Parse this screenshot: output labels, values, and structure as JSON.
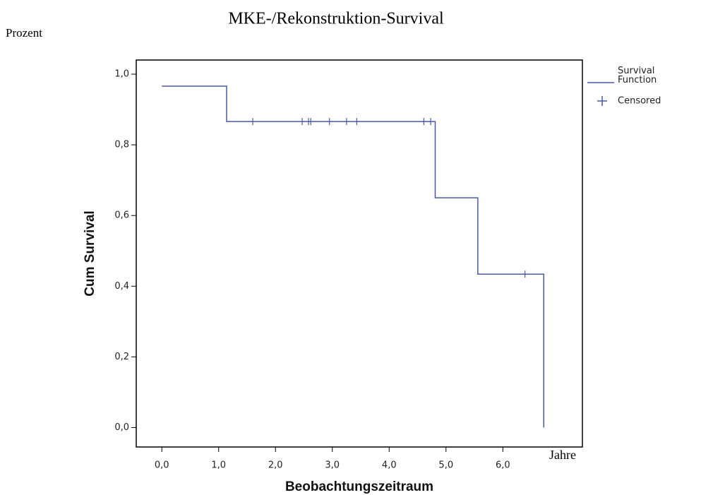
{
  "chart_data": {
    "type": "step",
    "title": "MKE-/Rekonstruktion-Survival",
    "annotations": [
      "Prozent",
      "Jahre"
    ],
    "x_label": "Beobachtungszeitraum",
    "y_label": "Cum Survival",
    "xlim": [
      -0.45,
      7.4
    ],
    "ylim": [
      -0.055,
      1.04
    ],
    "xticks": [
      {
        "value": 0,
        "label": "0,0"
      },
      {
        "value": 1,
        "label": "1,0"
      },
      {
        "value": 2,
        "label": "2,0"
      },
      {
        "value": 3,
        "label": "3,0"
      },
      {
        "value": 4,
        "label": "4,0"
      },
      {
        "value": 5,
        "label": "5,0"
      },
      {
        "value": 6,
        "label": "6,0"
      }
    ],
    "yticks": [
      {
        "value": 0,
        "label": "0,0"
      },
      {
        "value": 0.2,
        "label": "0,2"
      },
      {
        "value": 0.4,
        "label": "0,4"
      },
      {
        "value": 0.6,
        "label": "0,6"
      },
      {
        "value": 0.8,
        "label": "0,8"
      },
      {
        "value": 1,
        "label": "1,0"
      }
    ],
    "series": [
      {
        "name": "Survival Function",
        "color": "#4a5aa8",
        "x": [
          0,
          1.14,
          4.81,
          5.56,
          6.72,
          6.72
        ],
        "values": [
          0.966,
          0.866,
          0.65,
          0.434,
          0.434,
          0
        ]
      },
      {
        "name": "Censored",
        "color": "#4a5aa8",
        "x": [
          1.6,
          2.47,
          2.58,
          2.62,
          2.95,
          3.25,
          3.43,
          4.61,
          4.73,
          6.39
        ],
        "values": [
          0.866,
          0.866,
          0.866,
          0.866,
          0.866,
          0.866,
          0.866,
          0.866,
          0.866,
          0.434
        ]
      }
    ]
  }
}
